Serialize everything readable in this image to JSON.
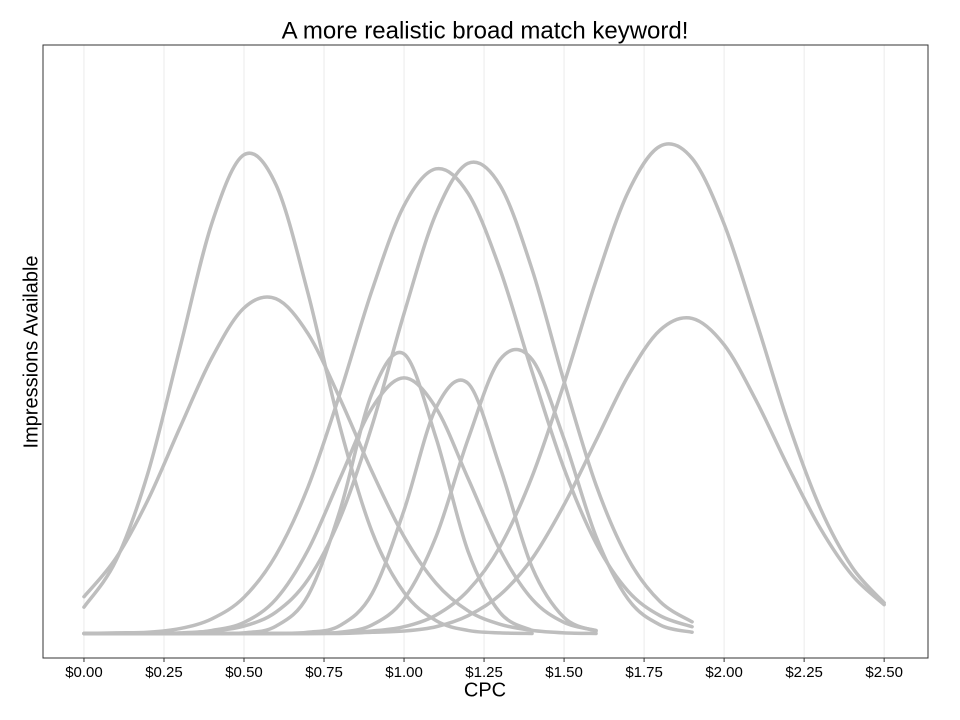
{
  "chart_data": {
    "type": "line",
    "title": "A more realistic broad match keyword!",
    "x_label": "CPC",
    "y_label": "Impressions Available",
    "x": [
      0.0,
      0.1,
      0.2,
      0.3,
      0.4,
      0.5,
      0.6,
      0.7,
      0.8,
      0.9,
      1.0,
      1.1,
      1.2,
      1.3,
      1.4,
      1.5,
      1.6,
      1.7,
      1.8,
      1.9,
      2.0,
      2.1,
      2.2,
      2.3,
      2.4,
      2.5
    ],
    "series": [
      {
        "color": "#bebebe",
        "values": [
          8.3,
          15.9,
          30.2,
          50.6,
          71.0,
          82.1,
          77.2,
          59.5,
          37.7,
          20.6,
          10.7,
          6.1,
          4.5,
          4.1,
          4.0,
          null,
          null,
          null,
          null,
          null,
          null,
          null,
          null,
          null,
          null,
          null
        ]
      },
      {
        "color": "#bebebe",
        "values": [
          10.0,
          16.3,
          25.8,
          37.6,
          49.0,
          57.1,
          58.6,
          52.9,
          42.3,
          30.4,
          19.8,
          12.2,
          7.7,
          5.5,
          4.5,
          4.1,
          4.0,
          null,
          null,
          null,
          null,
          null,
          null,
          null,
          null,
          null
        ]
      },
      {
        "color": "#bebebe",
        "values": [
          4.0,
          4.0,
          4.0,
          4.0,
          4.0,
          4.1,
          5.2,
          10.2,
          24.1,
          43.2,
          49.6,
          35.9,
          17.4,
          7.4,
          4.5,
          null,
          null,
          null,
          null,
          null,
          null,
          null,
          null,
          null,
          null,
          null
        ]
      },
      {
        "color": "#bebebe",
        "values": [
          4.0,
          4.0,
          4.0,
          4.0,
          4.5,
          5.8,
          9.6,
          17.6,
          29.3,
          40.8,
          45.7,
          40.8,
          29.3,
          17.6,
          9.6,
          5.8,
          4.5,
          null,
          null,
          null,
          null,
          null,
          null,
          null,
          null,
          null
        ]
      },
      {
        "color": "#bebebe",
        "values": [
          4.0,
          4.1,
          4.2,
          4.8,
          6.4,
          9.9,
          16.8,
          27.9,
          43.2,
          60.0,
          73.8,
          79.8,
          75.8,
          63.4,
          46.7,
          30.9,
          18.7,
          10.9,
          6.9,
          5.1,
          null,
          null,
          null,
          null,
          null,
          null
        ]
      },
      {
        "color": "#bebebe",
        "values": [
          4.0,
          4.0,
          4.0,
          4.1,
          4.4,
          5.2,
          7.5,
          12.8,
          22.8,
          37.9,
          56.2,
          72.5,
          80.7,
          77.1,
          63.4,
          45.1,
          28.2,
          16.2,
          9.2,
          5.9,
          null,
          null,
          null,
          null,
          null,
          null
        ]
      },
      {
        "color": "#bebebe",
        "values": [
          4.0,
          4.0,
          4.0,
          4.0,
          4.0,
          4.0,
          4.0,
          4.2,
          5.3,
          10.5,
          24.1,
          40.8,
          44.8,
          31.1,
          14.8,
          6.6,
          4.4,
          null,
          null,
          null,
          null,
          null,
          null,
          null,
          null,
          null
        ]
      },
      {
        "color": "#bebebe",
        "values": [
          4.0,
          4.0,
          4.0,
          4.0,
          4.0,
          4.0,
          4.0,
          4.0,
          4.2,
          5.4,
          9.6,
          19.8,
          35.7,
          48.7,
          48.7,
          35.7,
          19.8,
          9.6,
          5.4,
          4.2,
          null,
          null,
          null,
          null,
          null,
          null
        ]
      },
      {
        "color": "#bebebe",
        "values": [
          4.0,
          4.0,
          4.0,
          4.0,
          4.0,
          4.0,
          4.0,
          4.0,
          4.1,
          4.4,
          5.1,
          7.0,
          11.0,
          18.2,
          29.6,
          44.8,
          61.6,
          76.0,
          83.5,
          81.5,
          70.8,
          55.0,
          38.4,
          24.5,
          14.8,
          9.0
        ]
      },
      {
        "color": "#bebebe",
        "values": [
          4.0,
          4.0,
          4.0,
          4.0,
          4.0,
          4.0,
          4.0,
          4.0,
          4.0,
          4.2,
          4.4,
          5.1,
          6.9,
          10.3,
          16.2,
          25.0,
          35.5,
          46.0,
          53.5,
          55.4,
          51.1,
          42.0,
          31.2,
          21.2,
          13.5,
          8.7
        ]
      }
    ],
    "xlim": [
      -0.128,
      2.637
    ],
    "ylim": [
      0,
      100
    ],
    "xticks": [
      {
        "value": 0,
        "label": "$0.00"
      },
      {
        "value": 0.25,
        "label": "$0.25"
      },
      {
        "value": 0.5,
        "label": "$0.50"
      },
      {
        "value": 0.75,
        "label": "$0.75"
      },
      {
        "value": 1,
        "label": "$1.00"
      },
      {
        "value": 1.25,
        "label": "$1.25"
      },
      {
        "value": 1.5,
        "label": "$1.50"
      },
      {
        "value": 1.75,
        "label": "$1.75"
      },
      {
        "value": 2,
        "label": "$2.00"
      },
      {
        "value": 2.25,
        "label": "$2.25"
      },
      {
        "value": 2.5,
        "label": "$2.50"
      }
    ],
    "grid": true
  }
}
